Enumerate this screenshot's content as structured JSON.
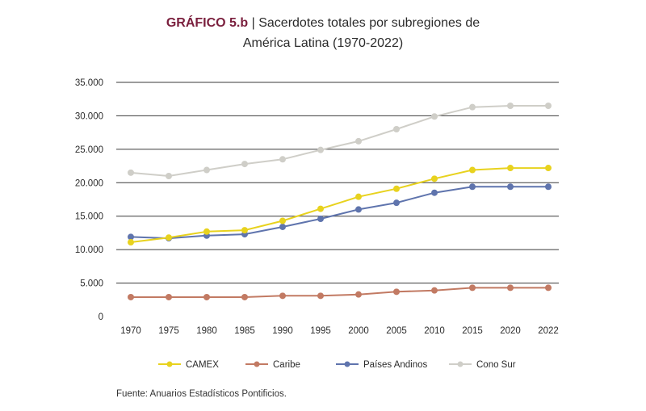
{
  "header": {
    "prefix": "GRÁFICO 5.b",
    "separator": "|",
    "title_line1": "Sacerdotes totales por subregiones de",
    "title_line2": "América Latina (1970-2022)"
  },
  "chart_data": {
    "type": "line",
    "title": "GRÁFICO 5.b | Sacerdotes totales por subregiones de América Latina (1970-2022)",
    "categories": [
      "1970",
      "1975",
      "1980",
      "1985",
      "1990",
      "1995",
      "2000",
      "2005",
      "2010",
      "2015",
      "2020",
      "2022"
    ],
    "y_ticks": [
      0,
      5000,
      10000,
      15000,
      20000,
      25000,
      30000,
      35000
    ],
    "y_tick_labels": [
      "0",
      "5.000",
      "10.000",
      "15.000",
      "20.000",
      "25.000",
      "30.000",
      "35.000"
    ],
    "ylim": [
      0,
      35000
    ],
    "xlabel": "",
    "ylabel": "",
    "grid": "horizontal",
    "legend_position": "bottom",
    "series": [
      {
        "name": "CAMEX",
        "color": "#e8d21e",
        "values": [
          11100,
          11800,
          12700,
          12900,
          14300,
          16100,
          17900,
          19100,
          20600,
          21900,
          22200,
          22200
        ]
      },
      {
        "name": "Caribe",
        "color": "#c27a63",
        "values": [
          2900,
          2900,
          2900,
          2900,
          3100,
          3100,
          3300,
          3700,
          3900,
          4300,
          4300,
          4300
        ]
      },
      {
        "name": "Países Andinos",
        "color": "#5f74ad",
        "values": [
          11900,
          11700,
          12100,
          12300,
          13400,
          14600,
          16000,
          17000,
          18500,
          19400,
          19400,
          19400
        ]
      },
      {
        "name": "Cono Sur",
        "color": "#cfcec8",
        "values": [
          21500,
          21000,
          21900,
          22800,
          23500,
          24900,
          26200,
          28000,
          29900,
          31300,
          31500,
          31500
        ]
      }
    ]
  },
  "source": "Fuente: Anuarios Estadísticos Pontificios."
}
